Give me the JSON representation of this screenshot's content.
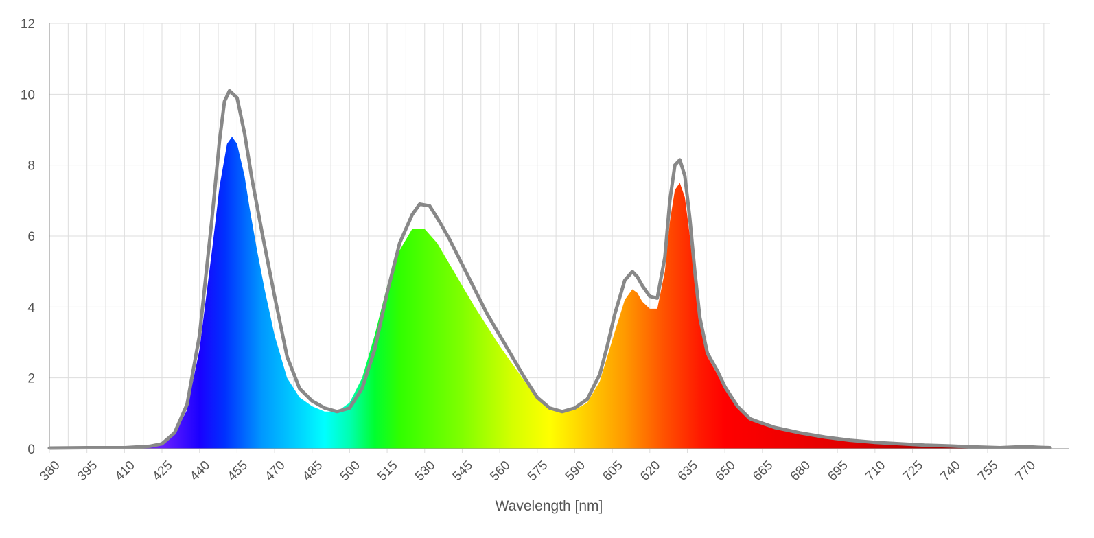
{
  "chart_data": {
    "type": "area",
    "xlabel": "Wavelength [nm]",
    "ylabel": "",
    "xlim": [
      380,
      780
    ],
    "ylim": [
      0,
      12
    ],
    "grid": true,
    "legend": "none",
    "x_ticks": [
      380,
      395,
      410,
      425,
      440,
      455,
      470,
      485,
      500,
      515,
      530,
      545,
      560,
      575,
      590,
      605,
      620,
      635,
      650,
      665,
      680,
      695,
      710,
      725,
      740,
      755,
      770
    ],
    "y_ticks": [
      0,
      2,
      4,
      6,
      8,
      10,
      12
    ],
    "x_grid_step": 7.5,
    "series": [
      {
        "kind": "filled-spectrum",
        "fill": "wavelength-colors",
        "x": [
          380,
          395,
          410,
          420,
          425,
          430,
          435,
          440,
          445,
          448,
          451,
          453,
          455,
          458,
          460,
          463,
          466,
          470,
          475,
          480,
          485,
          490,
          495,
          500,
          505,
          510,
          515,
          520,
          525,
          530,
          535,
          540,
          545,
          550,
          555,
          560,
          565,
          570,
          575,
          580,
          585,
          590,
          595,
          600,
          603,
          606,
          610,
          613,
          615,
          617,
          620,
          623,
          626,
          628,
          630,
          632,
          634,
          636,
          638,
          640,
          643,
          647,
          650,
          655,
          660,
          665,
          670,
          680,
          690,
          700,
          710,
          720,
          730,
          740,
          750,
          760,
          770,
          775,
          780
        ],
        "values": [
          0.02,
          0.03,
          0.03,
          0.06,
          0.12,
          0.4,
          1.1,
          2.8,
          5.6,
          7.4,
          8.6,
          8.8,
          8.6,
          7.7,
          6.8,
          5.6,
          4.5,
          3.2,
          2.0,
          1.45,
          1.2,
          1.05,
          1.05,
          1.3,
          2.0,
          3.2,
          4.6,
          5.6,
          6.2,
          6.2,
          5.8,
          5.2,
          4.6,
          4.0,
          3.45,
          2.9,
          2.4,
          1.9,
          1.4,
          1.1,
          1.05,
          1.1,
          1.3,
          1.9,
          2.6,
          3.3,
          4.2,
          4.5,
          4.4,
          4.15,
          3.95,
          3.95,
          5.0,
          6.4,
          7.3,
          7.5,
          7.1,
          6.0,
          4.6,
          3.5,
          2.6,
          2.1,
          1.7,
          1.2,
          0.85,
          0.72,
          0.6,
          0.45,
          0.33,
          0.24,
          0.18,
          0.14,
          0.1,
          0.08,
          0.05,
          0.03,
          0.06,
          0.04,
          0.03
        ]
      },
      {
        "kind": "line",
        "color": "#888888",
        "x": [
          380,
          395,
          410,
          420,
          425,
          430,
          435,
          440,
          445,
          448,
          450,
          452,
          455,
          458,
          461,
          465,
          470,
          475,
          480,
          485,
          490,
          495,
          500,
          505,
          510,
          515,
          520,
          525,
          528,
          532,
          536,
          540,
          545,
          550,
          555,
          560,
          565,
          570,
          575,
          580,
          585,
          590,
          595,
          600,
          603,
          606,
          610,
          613,
          615,
          617,
          620,
          623,
          626,
          628,
          630,
          632,
          634,
          636,
          638,
          640,
          643,
          647,
          650,
          655,
          660,
          665,
          670,
          680,
          690,
          700,
          710,
          720,
          730,
          740,
          750,
          760,
          770,
          775,
          780
        ],
        "values": [
          0.02,
          0.03,
          0.03,
          0.07,
          0.14,
          0.45,
          1.25,
          3.2,
          6.5,
          8.7,
          9.8,
          10.1,
          9.9,
          8.9,
          7.6,
          6.1,
          4.3,
          2.6,
          1.7,
          1.35,
          1.15,
          1.05,
          1.15,
          1.7,
          2.8,
          4.4,
          5.8,
          6.6,
          6.9,
          6.85,
          6.4,
          5.9,
          5.2,
          4.5,
          3.8,
          3.2,
          2.6,
          2.0,
          1.45,
          1.15,
          1.05,
          1.15,
          1.4,
          2.1,
          2.9,
          3.8,
          4.75,
          5.0,
          4.85,
          4.6,
          4.3,
          4.25,
          5.4,
          7.0,
          8.0,
          8.15,
          7.7,
          6.5,
          5.0,
          3.7,
          2.7,
          2.2,
          1.75,
          1.2,
          0.85,
          0.72,
          0.6,
          0.45,
          0.33,
          0.24,
          0.18,
          0.14,
          0.1,
          0.08,
          0.05,
          0.03,
          0.06,
          0.04,
          0.03
        ]
      }
    ]
  }
}
